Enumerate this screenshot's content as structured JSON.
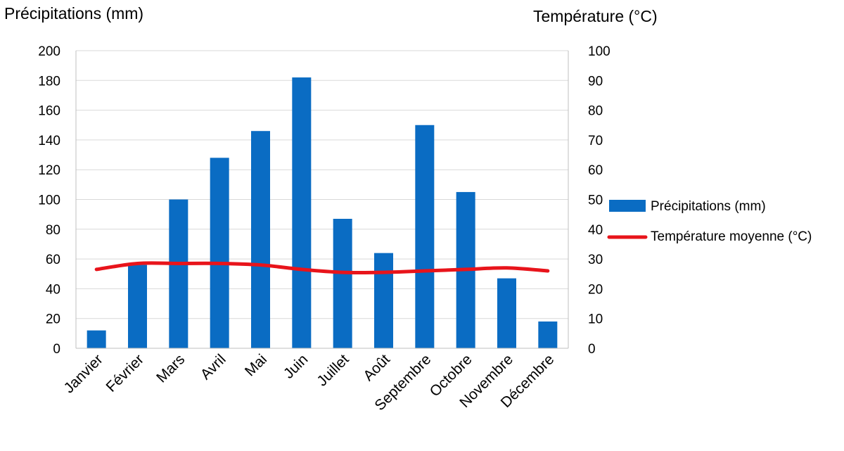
{
  "chart_data": {
    "type": "bar",
    "categories": [
      "Janvier",
      "Février",
      "Mars",
      "Avril",
      "Mai",
      "Juin",
      "Juillet",
      "Août",
      "Septembre",
      "Octobre",
      "Novembre",
      "Décembre"
    ],
    "series": [
      {
        "name": "Précipitations (mm)",
        "type": "bar",
        "axis": "left",
        "color": "#0a6cc3",
        "values": [
          12,
          56,
          100,
          128,
          146,
          182,
          87,
          64,
          150,
          105,
          47,
          18
        ]
      },
      {
        "name": "Température moyenne (°C)",
        "type": "line",
        "axis": "right",
        "color": "#e8141b",
        "values": [
          26.5,
          28.5,
          28.5,
          28.5,
          28,
          26.5,
          25.5,
          25.5,
          26,
          26.5,
          27,
          26
        ]
      }
    ],
    "ylabel_left": "Précipitations (mm)",
    "ylabel_right": "Température (°C)",
    "ylim_left": [
      0,
      200
    ],
    "yticks_left": [
      "0",
      "20",
      "40",
      "60",
      "80",
      "100",
      "120",
      "140",
      "160",
      "180",
      "200"
    ],
    "ylim_right": [
      0,
      100
    ],
    "yticks_right": [
      "0",
      "10",
      "20",
      "30",
      "40",
      "50",
      "60",
      "70",
      "80",
      "90",
      "100"
    ],
    "grid": true,
    "legend_position": "right"
  }
}
